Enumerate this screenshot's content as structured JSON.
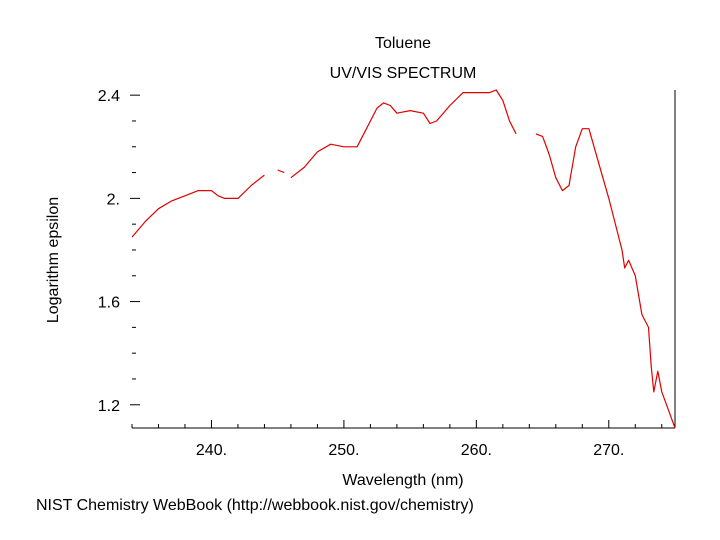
{
  "chart_data": {
    "type": "line",
    "title": "Toluene",
    "subtitle": "UV/VIS SPECTRUM",
    "xlabel": "Wavelength (nm)",
    "ylabel": "Logarithm epsilon",
    "footer": "NIST Chemistry WebBook (http://webbook.nist.gov/chemistry)",
    "xlim": [
      234,
      275
    ],
    "ylim": [
      1.11,
      2.42
    ],
    "grid": false,
    "line_color": "#e00000",
    "axis_color": "#000000",
    "x_ticks": [
      {
        "value": 240,
        "label": "240."
      },
      {
        "value": 250,
        "label": "250."
      },
      {
        "value": 260,
        "label": "260."
      },
      {
        "value": 270,
        "label": "270."
      }
    ],
    "y_ticks": [
      {
        "value": 2.4,
        "label": "2.4"
      },
      {
        "value": 2.0,
        "label": "2."
      },
      {
        "value": 1.6,
        "label": "1.6"
      },
      {
        "value": 1.2,
        "label": "1.2"
      }
    ],
    "series": [
      {
        "segments": [
          [
            [
              234.0,
              1.85
            ],
            [
              235.0,
              1.91
            ],
            [
              236.0,
              1.96
            ],
            [
              237.0,
              1.99
            ],
            [
              238.0,
              2.01
            ],
            [
              239.0,
              2.03
            ],
            [
              240.0,
              2.03
            ],
            [
              240.5,
              2.01
            ],
            [
              241.0,
              2.0
            ],
            [
              242.0,
              2.0
            ],
            [
              243.0,
              2.05
            ],
            [
              244.0,
              2.09
            ]
          ],
          [
            [
              245.0,
              2.11
            ],
            [
              245.5,
              2.1
            ]
          ],
          [
            [
              246.0,
              2.08
            ],
            [
              247.0,
              2.12
            ],
            [
              248.0,
              2.18
            ],
            [
              249.0,
              2.21
            ],
            [
              250.0,
              2.2
            ],
            [
              251.0,
              2.2
            ],
            [
              251.6,
              2.26
            ],
            [
              252.5,
              2.35
            ],
            [
              253.0,
              2.37
            ],
            [
              253.5,
              2.36
            ],
            [
              254.0,
              2.33
            ],
            [
              255.0,
              2.34
            ],
            [
              256.0,
              2.33
            ],
            [
              256.5,
              2.29
            ],
            [
              257.0,
              2.3
            ],
            [
              258.0,
              2.36
            ],
            [
              259.0,
              2.41
            ],
            [
              260.0,
              2.41
            ],
            [
              261.0,
              2.41
            ],
            [
              261.5,
              2.42
            ],
            [
              262.0,
              2.38
            ],
            [
              262.5,
              2.3
            ],
            [
              263.0,
              2.25
            ]
          ],
          [
            [
              264.5,
              2.25
            ],
            [
              265.0,
              2.24
            ],
            [
              265.5,
              2.17
            ],
            [
              266.0,
              2.08
            ],
            [
              266.5,
              2.03
            ],
            [
              267.0,
              2.05
            ],
            [
              267.5,
              2.2
            ],
            [
              268.0,
              2.27
            ],
            [
              268.5,
              2.27
            ],
            [
              269.0,
              2.18
            ],
            [
              270.0,
              2.0
            ],
            [
              271.0,
              1.8
            ],
            [
              271.2,
              1.73
            ],
            [
              271.5,
              1.76
            ],
            [
              272.0,
              1.7
            ],
            [
              272.5,
              1.55
            ],
            [
              273.0,
              1.5
            ],
            [
              273.2,
              1.35
            ],
            [
              273.4,
              1.25
            ],
            [
              273.7,
              1.33
            ],
            [
              274.0,
              1.25
            ],
            [
              274.5,
              1.18
            ],
            [
              275.0,
              1.11
            ]
          ]
        ]
      }
    ]
  }
}
